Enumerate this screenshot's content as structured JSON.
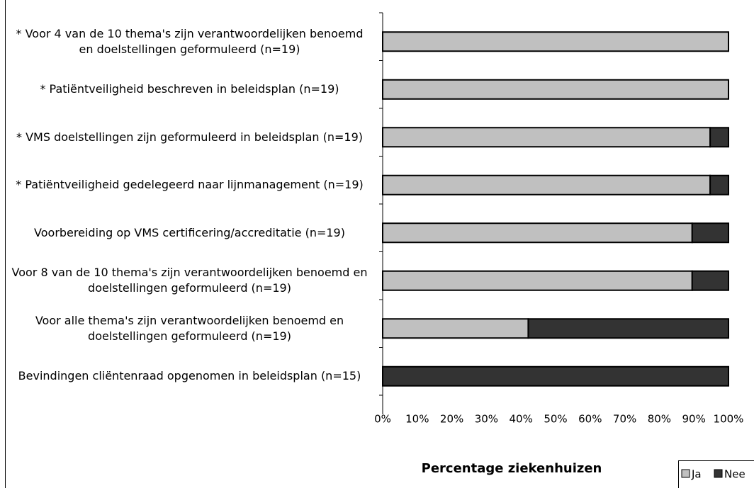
{
  "chart_data": {
    "type": "stacked_barh",
    "xlabel": "Percentage ziekenhuizen",
    "categories": [
      "* Voor 4 van de 10 thema's zijn verantwoordelijken benoemd en doelstellingen geformuleerd (n=19)",
      "* Patiëntveiligheid beschreven in beleidsplan (n=19)",
      "* VMS doelstellingen zijn geformuleerd in beleidsplan (n=19)",
      "* Patiëntveiligheid gedelegeerd naar lijnmanagement (n=19)",
      "Voorbereiding op VMS certificering/accreditatie (n=19)",
      "Voor 8 van de 10 thema's zijn verantwoordelijken benoemd en doelstellingen geformuleerd (n=19)",
      "Voor alle thema's zijn verantwoordelijken benoemd en doelstellingen geformuleerd (n=19)",
      "Bevindingen cliëntenraad opgenomen in beleidsplan (n=15)"
    ],
    "series": [
      {
        "name": "Ja",
        "color": "#c0c0c0",
        "values": [
          100,
          100,
          94.7,
          94.7,
          89.5,
          89.5,
          42.1,
          0
        ]
      },
      {
        "name": "Nee",
        "color": "#333333",
        "values": [
          0,
          0,
          5.3,
          5.3,
          10.5,
          10.5,
          57.9,
          100
        ]
      }
    ],
    "xlim": [
      0,
      100
    ],
    "xticks": [
      {
        "value": 0,
        "label": "0%"
      },
      {
        "value": 10,
        "label": "10%"
      },
      {
        "value": 20,
        "label": "20%"
      },
      {
        "value": 30,
        "label": "30%"
      },
      {
        "value": 40,
        "label": "40%"
      },
      {
        "value": 50,
        "label": "50%"
      },
      {
        "value": 60,
        "label": "60%"
      },
      {
        "value": 70,
        "label": "70%"
      },
      {
        "value": 80,
        "label": "80%"
      },
      {
        "value": 90,
        "label": "90%"
      },
      {
        "value": 100,
        "label": "100%"
      }
    ],
    "legend": "bottom-right"
  }
}
